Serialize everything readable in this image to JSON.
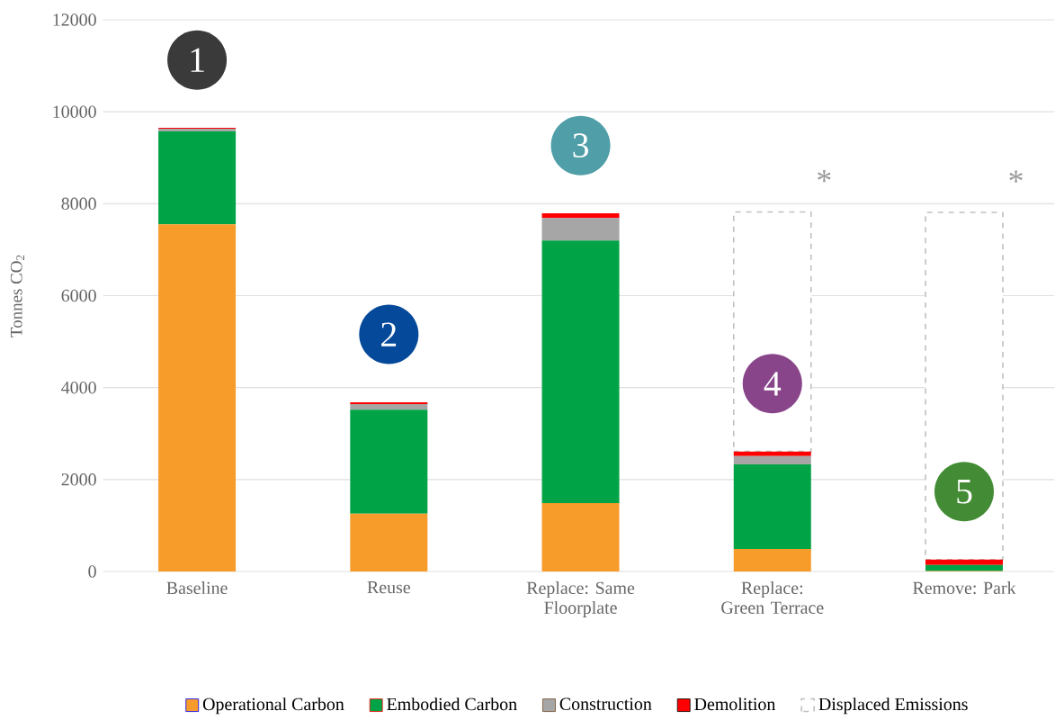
{
  "chart_data": {
    "type": "bar",
    "stacked": true,
    "ylabel": "Tonnes CO$_{2}$",
    "categories": [
      "Baseline",
      "Reuse",
      "Replace: Same Floorplate",
      "Replace: Green Terrace",
      "Remove: Park"
    ],
    "series": [
      {
        "name": "Operational Carbon",
        "color": "#f79b2a",
        "values": [
          7550,
          1260,
          1490,
          490,
          10
        ]
      },
      {
        "name": "Embodied Carbon",
        "color": "#00a346",
        "values": [
          2020,
          2260,
          5710,
          1840,
          130
        ]
      },
      {
        "name": "Construction",
        "color": "#a6a6a6",
        "values": [
          60,
          120,
          490,
          180,
          0
        ]
      },
      {
        "name": "Demolition",
        "color": "#ff0000",
        "values": [
          20,
          40,
          100,
          100,
          120
        ]
      },
      {
        "name": "Displaced Emissions",
        "color": "#c0c0c0",
        "line_style": "dashed",
        "values": [
          null,
          null,
          null,
          5210,
          7550
        ]
      }
    ],
    "ylim": [
      0,
      12000
    ],
    "yticks": [
      0,
      2000,
      4000,
      6000,
      8000,
      10000,
      12000
    ],
    "grid": "y",
    "legend": "bottom",
    "annotations": [
      "1",
      "2",
      "3",
      "4",
      "5",
      "*",
      "*"
    ]
  }
}
